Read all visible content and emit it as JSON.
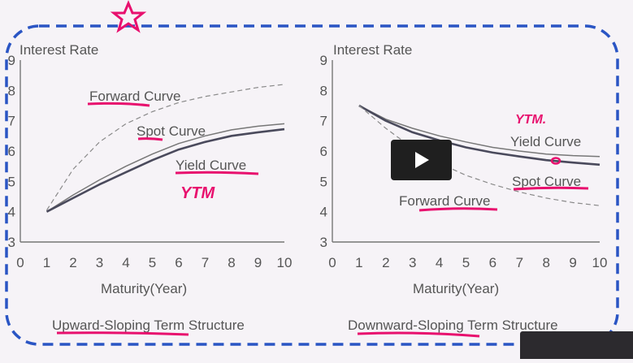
{
  "colors": {
    "ink": "#555555",
    "axis": "#777777",
    "marker": "#e8106e",
    "dash_box": "#2a55c4",
    "yield": "#4a4a5c",
    "spot": "#777777",
    "forward": "#8a8a8a"
  },
  "chart_data": [
    {
      "type": "line",
      "title": "Upward-Sloping Term Structure",
      "ylabel": "Interest Rate",
      "xlabel": "Maturity(Year)",
      "xlim": [
        0,
        10
      ],
      "ylim": [
        3,
        9
      ],
      "x_ticks": [
        "0",
        "1",
        "2",
        "3",
        "4",
        "5",
        "6",
        "7",
        "8",
        "9",
        "10"
      ],
      "y_ticks": [
        "3",
        "4",
        "5",
        "6",
        "7",
        "8",
        "9"
      ],
      "grid": false,
      "series": [
        {
          "name": "Forward Curve",
          "style": "dashed",
          "x": [
            1,
            2,
            3,
            4,
            5,
            6,
            7,
            8,
            9,
            10
          ],
          "y": [
            4.05,
            5.4,
            6.3,
            6.9,
            7.3,
            7.6,
            7.8,
            7.95,
            8.1,
            8.2
          ]
        },
        {
          "name": "Spot Curve",
          "style": "solid",
          "x": [
            1,
            2,
            3,
            4,
            5,
            6,
            7,
            8,
            9,
            10
          ],
          "y": [
            4.0,
            4.55,
            5.05,
            5.5,
            5.9,
            6.25,
            6.5,
            6.7,
            6.82,
            6.9
          ]
        },
        {
          "name": "Yield Curve",
          "style": "solid-bold",
          "x": [
            1,
            2,
            3,
            4,
            5,
            6,
            7,
            8,
            9,
            10
          ],
          "y": [
            4.0,
            4.45,
            4.9,
            5.3,
            5.7,
            6.05,
            6.3,
            6.5,
            6.62,
            6.72
          ]
        }
      ],
      "annotation": "YTM"
    },
    {
      "type": "line",
      "title": "Downward-Sloping Term Structure",
      "ylabel": "Interest Rate",
      "xlabel": "Maturity(Year)",
      "xlim": [
        0,
        10
      ],
      "ylim": [
        3,
        9
      ],
      "x_ticks": [
        "0",
        "1",
        "2",
        "3",
        "4",
        "5",
        "6",
        "7",
        "8",
        "9",
        "10"
      ],
      "y_ticks": [
        "3",
        "4",
        "5",
        "6",
        "7",
        "8",
        "9"
      ],
      "grid": false,
      "series": [
        {
          "name": "Yield Curve",
          "style": "solid",
          "x": [
            1,
            2,
            3,
            4,
            5,
            6,
            7,
            8,
            9,
            10
          ],
          "y": [
            7.5,
            7.05,
            6.75,
            6.5,
            6.3,
            6.12,
            6.0,
            5.9,
            5.85,
            5.82
          ]
        },
        {
          "name": "Spot Curve",
          "style": "solid-bold",
          "x": [
            1,
            2,
            3,
            4,
            5,
            6,
            7,
            8,
            9,
            10
          ],
          "y": [
            7.5,
            7.0,
            6.62,
            6.35,
            6.12,
            5.95,
            5.82,
            5.7,
            5.62,
            5.55
          ]
        },
        {
          "name": "Forward Curve",
          "style": "dashed",
          "x": [
            1,
            2,
            3,
            4,
            5,
            6,
            7,
            8,
            9,
            10
          ],
          "y": [
            7.5,
            6.75,
            6.1,
            5.6,
            5.2,
            4.9,
            4.65,
            4.45,
            4.3,
            4.2
          ]
        }
      ],
      "annotation": "YTM."
    }
  ]
}
